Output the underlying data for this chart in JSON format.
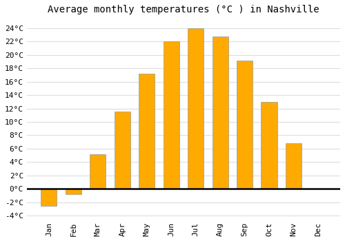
{
  "title": "Average monthly temperatures (°C ) in Nashville",
  "months": [
    "Jan",
    "Feb",
    "Mar",
    "Apr",
    "May",
    "Jun",
    "Jul",
    "Aug",
    "Sep",
    "Oct",
    "Nov",
    "Dec"
  ],
  "values": [
    -2.5,
    -0.8,
    5.2,
    11.5,
    17.2,
    22.0,
    24.0,
    22.8,
    19.2,
    13.0,
    6.8,
    0.0
  ],
  "bar_color": "#FFAA00",
  "bar_edge_color": "#999999",
  "ylim": [
    -4.5,
    25.5
  ],
  "yticks": [
    -4,
    -2,
    0,
    2,
    4,
    6,
    8,
    10,
    12,
    14,
    16,
    18,
    20,
    22,
    24
  ],
  "ytick_labels": [
    "-4°C",
    "-2°C",
    "0°C",
    "2°C",
    "4°C",
    "6°C",
    "8°C",
    "10°C",
    "12°C",
    "14°C",
    "16°C",
    "18°C",
    "20°C",
    "22°C",
    "24°C"
  ],
  "background_color": "#ffffff",
  "plot_bg_color": "#ffffff",
  "grid_color": "#dddddd",
  "zero_line_color": "#000000",
  "title_fontsize": 10,
  "tick_fontsize": 8,
  "bar_width": 0.65
}
